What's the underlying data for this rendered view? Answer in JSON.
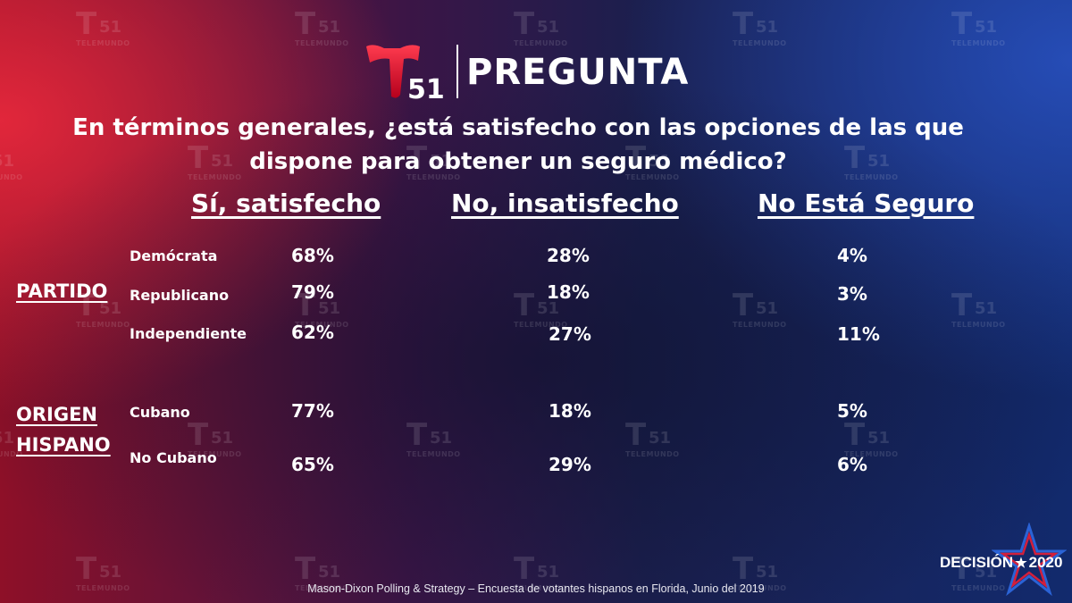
{
  "header": {
    "logo_number": "51",
    "label": "PREGUNTA"
  },
  "watermark": {
    "number": "51",
    "word": "TELEMUNDO"
  },
  "question": "En términos generales, ¿está satisfecho con las opciones de las que dispone para obtener un seguro médico?",
  "columns": [
    "Sí, satisfecho",
    "No, insatisfecho",
    "No Está Seguro"
  ],
  "groups": [
    {
      "label_lines": [
        "PARTIDO"
      ],
      "rows": [
        {
          "label": "Demócrata",
          "values": [
            "68%",
            "28%",
            "4%"
          ]
        },
        {
          "label": "Republicano",
          "values": [
            "79%",
            "18%",
            "3%"
          ]
        },
        {
          "label": "Independiente",
          "values": [
            "62%",
            "27%",
            "11%"
          ]
        }
      ]
    },
    {
      "label_lines": [
        "ORIGEN",
        "HISPANO"
      ],
      "rows": [
        {
          "label": "Cubano",
          "values": [
            "77%",
            "18%",
            "5%"
          ]
        },
        {
          "label": "No Cubano",
          "values": [
            "65%",
            "29%",
            "6%"
          ]
        }
      ]
    }
  ],
  "footer": "Mason-Dixon  Polling & Strategy – Encuesta de votantes hispanos en Florida, Junio del 2019",
  "branding": {
    "word": "DECISIÓN",
    "year": "2020"
  },
  "colors": {
    "logo_red": "#e4102e",
    "brand_blue": "#1d4fb8"
  }
}
